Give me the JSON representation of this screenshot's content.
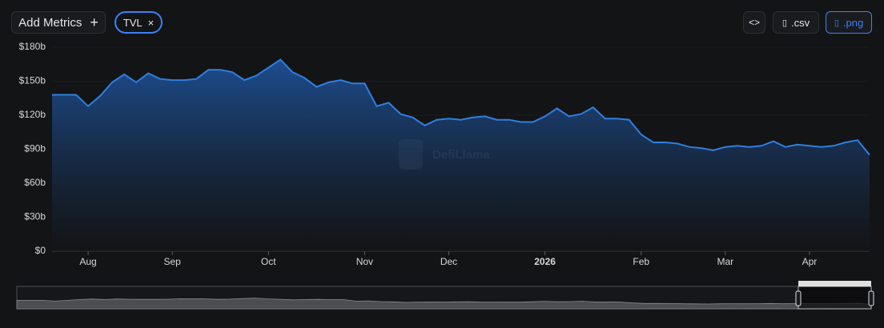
{
  "toolbar": {
    "add_metrics": "Add Metrics",
    "metric_chip": "TVL",
    "embed": "<>",
    "csv": ".csv",
    "png": ".png"
  },
  "watermark": "DefiLlama",
  "chart_data": {
    "type": "area",
    "categories": [
      null,
      null,
      null,
      "Aug",
      null,
      null,
      null,
      null,
      null,
      null,
      "Sep",
      null,
      null,
      null,
      null,
      null,
      null,
      null,
      "Oct",
      null,
      null,
      null,
      null,
      null,
      null,
      null,
      "Nov",
      null,
      null,
      null,
      null,
      null,
      null,
      "Dec",
      null,
      null,
      null,
      null,
      null,
      null,
      null,
      "2026",
      null,
      null,
      null,
      null,
      null,
      null,
      null,
      "Feb",
      null,
      null,
      null,
      null,
      null,
      null,
      "Mar",
      null,
      null,
      null,
      null,
      null,
      null,
      "Apr",
      null,
      null,
      null,
      null,
      null
    ],
    "series": [
      {
        "name": "TVL",
        "color": "#2f7fe0",
        "values": [
          138,
          138,
          138,
          128,
          137,
          149,
          156,
          149,
          157,
          152,
          151,
          151,
          152,
          160,
          160,
          158,
          151,
          155,
          162,
          169,
          158,
          153,
          145,
          149,
          151,
          148,
          148,
          128,
          131,
          121,
          118,
          111,
          116,
          117,
          116,
          118,
          119,
          116,
          116,
          114,
          114,
          119,
          126,
          119,
          121,
          127,
          117,
          117,
          116,
          103,
          96,
          96,
          95,
          92,
          91,
          89,
          92,
          93,
          92,
          93,
          97,
          92,
          94,
          93,
          92,
          93,
          96,
          98,
          85
        ]
      }
    ],
    "ylim": [
      0,
      180
    ],
    "yticks": [
      {
        "value": 0,
        "label": "$0"
      },
      {
        "value": 30,
        "label": "$30b"
      },
      {
        "value": 60,
        "label": "$60b"
      },
      {
        "value": 90,
        "label": "$90b"
      },
      {
        "value": 120,
        "label": "$120b"
      },
      {
        "value": 150,
        "label": "$150b"
      },
      {
        "value": 180,
        "label": "$180b"
      }
    ]
  }
}
